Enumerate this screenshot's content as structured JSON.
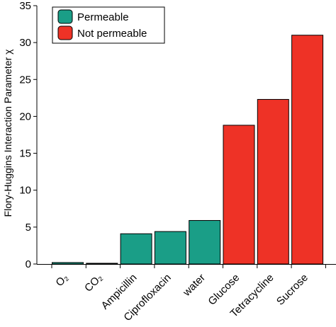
{
  "chart_data": {
    "type": "bar",
    "title": "",
    "xlabel": "",
    "ylabel": "Flory-Huggins Interaction Parameter χ",
    "ylim": [
      0,
      35
    ],
    "yticks": [
      0,
      5,
      10,
      15,
      20,
      25,
      30,
      35
    ],
    "grid": false,
    "legend_position": "top-left",
    "categories": [
      "O₂",
      "CO₂",
      "Ampicillin",
      "Ciprofloxacin",
      "water",
      "Glucose",
      "Tetracycline",
      "Sucrose"
    ],
    "values": [
      0.2,
      0.1,
      4.1,
      4.4,
      5.9,
      18.8,
      22.3,
      31.0
    ],
    "groups": [
      "Permeable",
      "Permeable",
      "Permeable",
      "Permeable",
      "Permeable",
      "Not permeable",
      "Not permeable",
      "Not permeable"
    ],
    "legend": [
      {
        "name": "Permeable",
        "color": "#1a9e87"
      },
      {
        "name": "Not permeable",
        "color": "#ee3226"
      }
    ]
  }
}
